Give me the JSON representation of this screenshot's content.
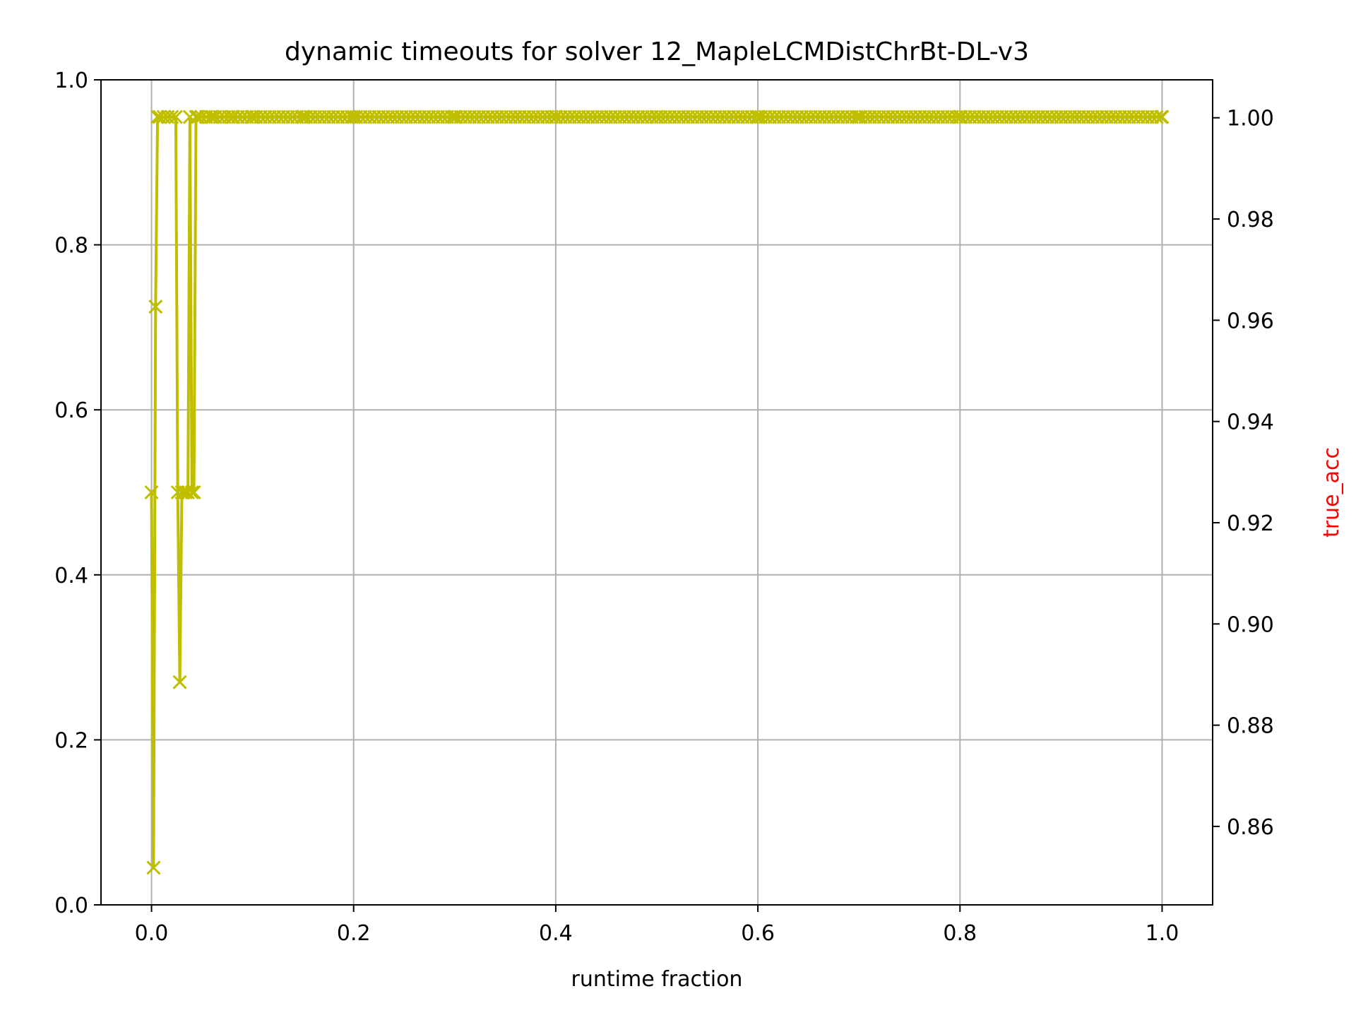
{
  "chart_data": {
    "type": "line",
    "title": "dynamic timeouts for solver 12_MapleLCMDistChrBt-DL-v3",
    "xlabel": "runtime fraction",
    "ylabel": "",
    "y2label": "true_acc",
    "xlim": [
      -0.05,
      1.05
    ],
    "ylim": [
      0.0,
      1.0
    ],
    "y2lim": [
      0.8445,
      1.0075
    ],
    "xticks": [
      "0.0",
      "0.2",
      "0.4",
      "0.6",
      "0.8",
      "1.0"
    ],
    "yticks": [
      "0.0",
      "0.2",
      "0.4",
      "0.6",
      "0.8",
      "1.0"
    ],
    "y2ticks": [
      "0.86",
      "0.88",
      "0.90",
      "0.92",
      "0.94",
      "0.96",
      "0.98",
      "1.00"
    ],
    "grid": true,
    "colors": {
      "series": "#bfbf00",
      "y2label": "#ff0000",
      "grid": "#b0b0b0"
    },
    "series": [
      {
        "axis": "left",
        "marker": "x",
        "x": [
          0.0,
          0.002,
          0.004,
          0.006,
          0.008,
          0.012,
          0.016,
          0.02,
          0.024,
          0.026,
          0.028,
          0.03,
          0.032,
          0.034,
          0.036,
          0.038,
          0.04,
          0.042,
          0.044,
          0.046,
          0.06,
          0.08,
          0.1,
          0.15,
          0.2,
          0.3,
          0.4,
          0.5,
          0.6,
          0.7,
          0.8,
          0.9,
          1.0
        ],
        "y": [
          0.5,
          0.045,
          0.725,
          0.955,
          0.955,
          0.955,
          0.955,
          0.955,
          0.955,
          0.5,
          0.27,
          0.5,
          0.5,
          0.5,
          0.5,
          0.955,
          0.5,
          0.5,
          0.955,
          0.955,
          0.955,
          0.955,
          0.955,
          0.955,
          0.955,
          0.955,
          0.955,
          0.955,
          0.955,
          0.955,
          0.955,
          0.955,
          0.955
        ]
      }
    ]
  }
}
